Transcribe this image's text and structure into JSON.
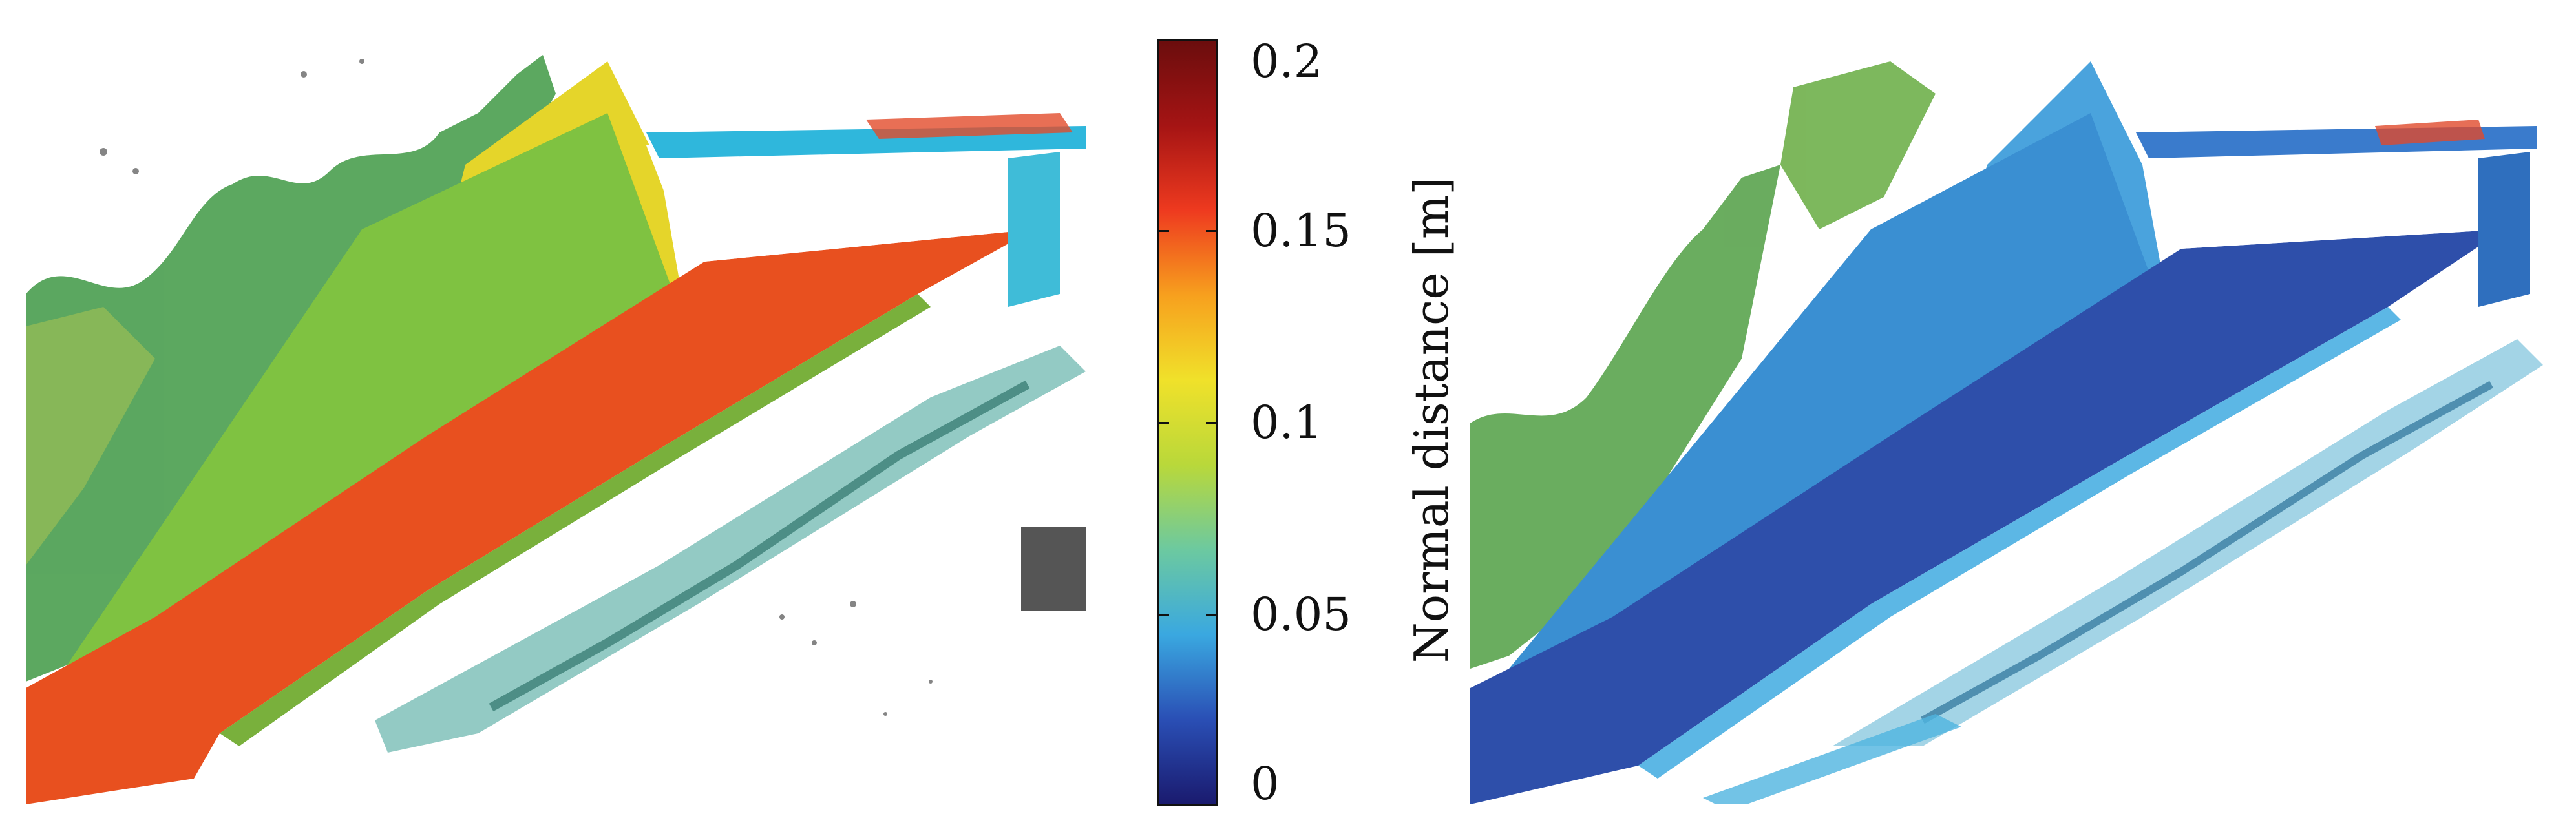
{
  "colorbar": {
    "title": "Normal distance [m]",
    "ticks": [
      {
        "label": "0.2",
        "value": 0.2
      },
      {
        "label": "0.15",
        "value": 0.15
      },
      {
        "label": "0.1",
        "value": 0.1
      },
      {
        "label": "0.05",
        "value": 0.05
      },
      {
        "label": "0",
        "value": 0
      }
    ],
    "range": [
      0,
      0.2
    ],
    "colormap": [
      "#1a1a6e",
      "#2a4fb5",
      "#3aa8e0",
      "#6cc9a0",
      "#b9d83a",
      "#f0e12a",
      "#f7a01e",
      "#ee3a1f",
      "#a51414",
      "#6b0d0d"
    ]
  },
  "panels": [
    {
      "id": "left",
      "road_color": "#e8501f",
      "wall_color": "#7fc241",
      "upper_wall_color": "#e5d52a",
      "curb_color": "#79b03c"
    },
    {
      "id": "right",
      "road_color": "#2e4faa",
      "wall_color": "#3a8fd2",
      "upper_wall_color": "#4aa3dd",
      "curb_color": "#5cb7e5"
    }
  ]
}
